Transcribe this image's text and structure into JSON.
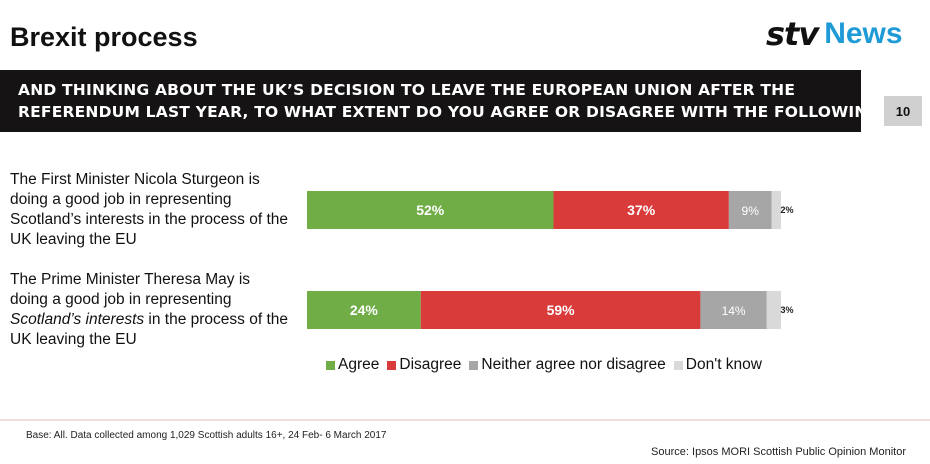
{
  "header": {
    "title": "Brexit process",
    "logo_text": "stv",
    "logo_news": "News",
    "page_number": "10"
  },
  "banner": {
    "line1": "AND THINKING ABOUT THE UK’S DECISION TO LEAVE THE EUROPEAN UNION AFTER THE",
    "line2": "REFERENDUM LAST YEAR, TO WHAT EXTENT DO YOU AGREE OR DISAGREE WITH THE FOLLOWING:"
  },
  "questions": {
    "q1": "The First Minister Nicola Sturgeon is doing a good job in representing Scotland’s interests in the process of the UK leaving the EU",
    "q2_part1": "The Prime Minister Theresa May is doing a good job in representing ",
    "q2_italic": "Scotland’s interests",
    "q2_part2": " in the process of the UK leaving the EU"
  },
  "footer": {
    "base": "Base: All. Data collected among 1,029 Scottish adults 16+, 24 Feb- 6 March 2017",
    "source": "Source: Ipsos MORI Scottish Public Opinion Monitor"
  },
  "chart_data": {
    "type": "bar",
    "orientation": "horizontal-stacked-100",
    "categories": [
      "The First Minister Nicola Sturgeon is doing a good job in representing Scotland’s interests in the process of the UK leaving the EU",
      "The Prime Minister Theresa May is doing a good job in representing Scotland’s interests in the process of the UK leaving the EU"
    ],
    "series": [
      {
        "name": "Agree",
        "values": [
          52,
          24
        ],
        "labels": [
          "52%",
          "24%"
        ],
        "color": "#70ad47"
      },
      {
        "name": "Disagree",
        "values": [
          37,
          59
        ],
        "labels": [
          "37%",
          "59%"
        ],
        "color": "#d93a3a"
      },
      {
        "name": "Neither agree nor disagree",
        "values": [
          9,
          14
        ],
        "labels": [
          "9%",
          "14%"
        ],
        "color": "#a6a6a6"
      },
      {
        "name": "Don't know",
        "values": [
          2,
          3
        ],
        "labels": [
          "2%",
          "3%"
        ],
        "color": "#d9d9d9"
      }
    ],
    "legend_position": "bottom",
    "grid": false
  }
}
